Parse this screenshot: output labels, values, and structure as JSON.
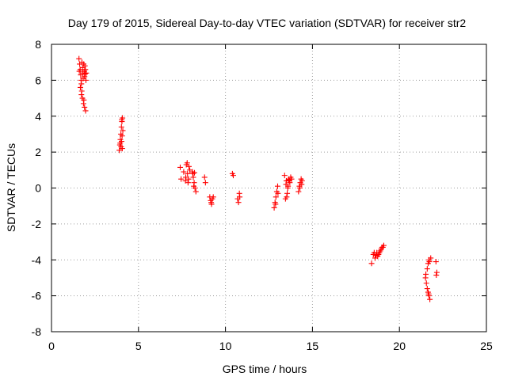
{
  "chart_data": {
    "type": "scatter",
    "title": "Day 179 of 2015, Sidereal Day-to-day VTEC variation (SDTVAR) for receiver str2",
    "xlabel": "GPS time / hours",
    "ylabel": "SDTVAR / TECUs",
    "xlim": [
      0,
      25
    ],
    "ylim": [
      -8,
      8
    ],
    "xticks": [
      0,
      5,
      10,
      15,
      20,
      25
    ],
    "yticks": [
      -8,
      -6,
      -4,
      -2,
      0,
      2,
      4,
      6,
      8
    ],
    "grid": true,
    "marker": "plus",
    "series_color": "#ff0000",
    "series": [
      {
        "points": [
          [
            1.58,
            7.2
          ],
          [
            1.62,
            6.9
          ],
          [
            1.65,
            6.6
          ],
          [
            1.68,
            6.3
          ],
          [
            1.7,
            6.0
          ],
          [
            1.72,
            5.8
          ],
          [
            1.75,
            7.0
          ],
          [
            1.78,
            6.7
          ],
          [
            1.8,
            6.4
          ],
          [
            1.82,
            6.1
          ],
          [
            1.85,
            6.9
          ],
          [
            1.88,
            6.5
          ],
          [
            1.9,
            6.2
          ],
          [
            1.92,
            6.8
          ],
          [
            1.95,
            6.6
          ],
          [
            1.98,
            6.0
          ],
          [
            1.66,
            5.6
          ],
          [
            1.72,
            5.2
          ],
          [
            1.78,
            5.0
          ],
          [
            1.84,
            4.7
          ],
          [
            1.9,
            4.5
          ],
          [
            1.96,
            4.3
          ],
          [
            1.74,
            5.4
          ],
          [
            1.86,
            4.9
          ],
          [
            2.0,
            6.4
          ],
          [
            1.6,
            6.5
          ],
          [
            1.93,
            6.35
          ],
          [
            3.9,
            2.1
          ],
          [
            3.93,
            2.4
          ],
          [
            3.96,
            2.7
          ],
          [
            3.99,
            3.0
          ],
          [
            4.02,
            3.4
          ],
          [
            4.05,
            3.7
          ],
          [
            4.08,
            3.9
          ],
          [
            4.0,
            2.3
          ],
          [
            4.03,
            2.6
          ],
          [
            4.06,
            2.9
          ],
          [
            4.1,
            3.2
          ],
          [
            3.95,
            2.5
          ],
          [
            4.07,
            2.2
          ],
          [
            4.04,
            3.8
          ],
          [
            7.4,
            1.15
          ],
          [
            7.45,
            0.5
          ],
          [
            7.6,
            0.9
          ],
          [
            7.7,
            0.4
          ],
          [
            7.75,
            1.3
          ],
          [
            7.8,
            1.4
          ],
          [
            7.85,
            0.3
          ],
          [
            7.9,
            1.2
          ],
          [
            7.72,
            0.6
          ],
          [
            7.88,
            0.5
          ],
          [
            7.95,
            1.0
          ],
          [
            7.82,
            0.8
          ],
          [
            8.1,
            0.9
          ],
          [
            8.15,
            0.6
          ],
          [
            8.2,
            0.3
          ],
          [
            8.25,
            0.0
          ],
          [
            8.3,
            -0.2
          ],
          [
            8.12,
            0.8
          ],
          [
            8.18,
            0.1
          ],
          [
            8.22,
            0.85
          ],
          [
            8.8,
            0.6
          ],
          [
            8.85,
            0.3
          ],
          [
            9.1,
            -0.5
          ],
          [
            9.15,
            -0.7
          ],
          [
            9.2,
            -0.9
          ],
          [
            9.25,
            -0.6
          ],
          [
            9.3,
            -0.5
          ],
          [
            9.18,
            -0.8
          ],
          [
            10.4,
            0.8
          ],
          [
            10.45,
            0.7
          ],
          [
            10.7,
            -0.6
          ],
          [
            10.75,
            -0.8
          ],
          [
            10.8,
            -0.3
          ],
          [
            10.82,
            -0.5
          ],
          [
            12.8,
            -1.1
          ],
          [
            12.85,
            -0.8
          ],
          [
            12.9,
            -0.5
          ],
          [
            12.95,
            -0.2
          ],
          [
            13.0,
            0.1
          ],
          [
            12.88,
            -0.9
          ],
          [
            13.02,
            -0.3
          ],
          [
            13.4,
            0.7
          ],
          [
            13.45,
            -0.6
          ],
          [
            13.5,
            0.4
          ],
          [
            13.55,
            -0.3
          ],
          [
            13.6,
            0.1
          ],
          [
            13.65,
            0.5
          ],
          [
            13.7,
            0.3
          ],
          [
            13.75,
            0.6
          ],
          [
            13.8,
            0.5
          ],
          [
            13.48,
            0.2
          ],
          [
            13.58,
            0.0
          ],
          [
            13.68,
            0.4
          ],
          [
            13.52,
            -0.5
          ],
          [
            13.62,
            0.45
          ],
          [
            14.2,
            -0.2
          ],
          [
            14.25,
            0.1
          ],
          [
            14.3,
            0.3
          ],
          [
            14.35,
            0.5
          ],
          [
            14.4,
            0.4
          ],
          [
            14.28,
            0.0
          ],
          [
            14.38,
            0.2
          ],
          [
            18.4,
            -4.2
          ],
          [
            18.5,
            -3.7
          ],
          [
            18.6,
            -3.9
          ],
          [
            18.7,
            -3.6
          ],
          [
            18.8,
            -3.7
          ],
          [
            18.9,
            -3.5
          ],
          [
            19.0,
            -3.3
          ],
          [
            19.1,
            -3.2
          ],
          [
            18.55,
            -3.6
          ],
          [
            18.75,
            -3.8
          ],
          [
            18.95,
            -3.4
          ],
          [
            19.05,
            -3.3
          ],
          [
            18.65,
            -3.75
          ],
          [
            18.85,
            -3.6
          ],
          [
            21.5,
            -5.0
          ],
          [
            21.55,
            -5.3
          ],
          [
            21.6,
            -5.6
          ],
          [
            21.65,
            -5.8
          ],
          [
            21.7,
            -6.0
          ],
          [
            21.75,
            -6.2
          ],
          [
            21.6,
            -4.5
          ],
          [
            21.65,
            -4.2
          ],
          [
            21.7,
            -4.0
          ],
          [
            21.8,
            -3.9
          ],
          [
            21.52,
            -4.8
          ],
          [
            21.68,
            -5.9
          ],
          [
            21.72,
            -4.1
          ],
          [
            22.1,
            -4.1
          ],
          [
            22.15,
            -4.7
          ],
          [
            22.12,
            -4.85
          ]
        ]
      }
    ]
  }
}
